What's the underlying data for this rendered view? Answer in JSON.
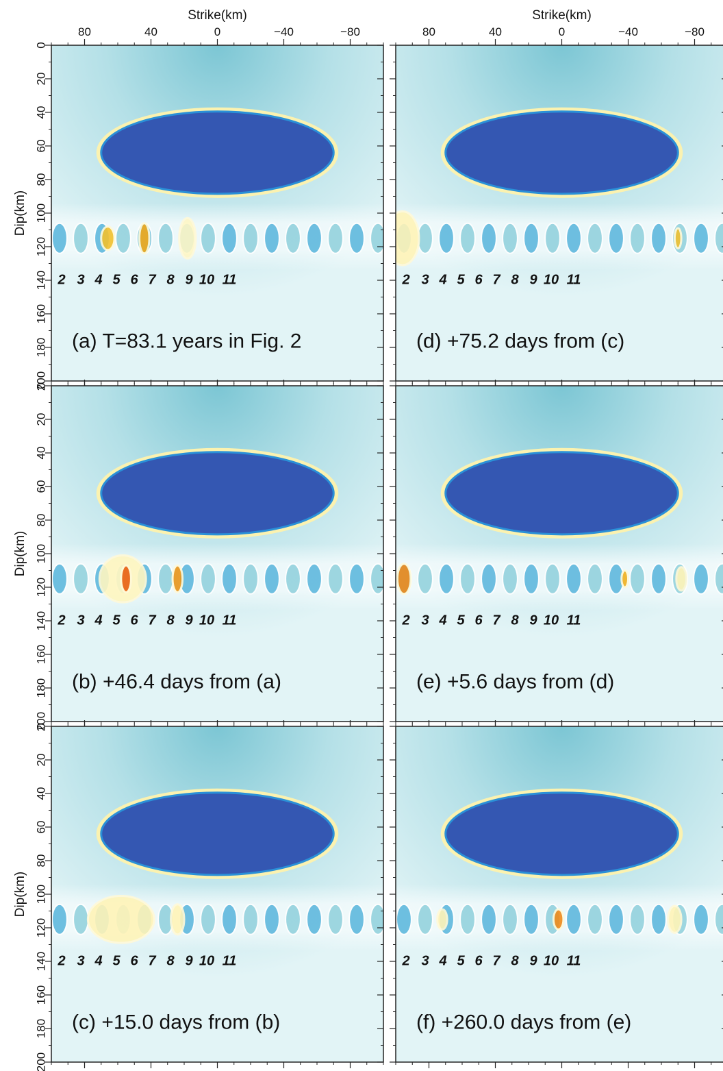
{
  "chart_data": [
    {
      "type": "image",
      "title": "(a) T=83.1 years in Fig. 2",
      "xlabel": "Strike(km)",
      "ylabel": "Dip(km)",
      "xlim": [
        100,
        -100
      ],
      "ylim": [
        0,
        200
      ],
      "xticks": [
        80,
        40,
        0,
        {
          "value": -40,
          "label": "−40"
        },
        {
          "value": -80,
          "label": "−80"
        }
      ],
      "yticks": [
        0,
        20,
        40,
        60,
        80,
        100,
        120,
        140,
        160,
        180,
        200
      ],
      "patches": [
        2,
        3,
        4,
        5,
        6,
        7,
        8,
        9,
        10,
        11
      ]
    },
    {
      "type": "image",
      "title": "(b) +46.4 days from (a)",
      "ylabel": "Dip(km)",
      "xlim": [
        100,
        -100
      ],
      "ylim": [
        0,
        200
      ],
      "xticks": [
        80,
        40,
        0,
        {
          "value": -40,
          "label": "−40"
        },
        {
          "value": -80,
          "label": "−80"
        }
      ],
      "yticks": [
        0,
        20,
        40,
        60,
        80,
        100,
        120,
        140,
        160,
        180,
        200
      ],
      "patches": [
        2,
        3,
        4,
        5,
        6,
        7,
        8,
        9,
        10,
        11
      ]
    },
    {
      "type": "image",
      "title": "(c) +15.0 days from (b)",
      "ylabel": "Dip(km)",
      "xlim": [
        100,
        -100
      ],
      "ylim": [
        0,
        200
      ],
      "xticks": [
        80,
        40,
        0,
        {
          "value": -40,
          "label": "−40"
        },
        {
          "value": -80,
          "label": "−80"
        }
      ],
      "yticks": [
        0,
        20,
        40,
        60,
        80,
        100,
        120,
        140,
        160,
        180,
        200
      ],
      "patches": [
        2,
        3,
        4,
        5,
        6,
        7,
        8,
        9,
        10,
        11
      ]
    },
    {
      "type": "image",
      "title": "(d) +75.2 days from (c)",
      "xlabel": "Strike(km)",
      "xlim": [
        100,
        -100
      ],
      "ylim": [
        0,
        200
      ],
      "xticks": [
        80,
        40,
        0,
        {
          "value": -40,
          "label": "−40"
        },
        {
          "value": -80,
          "label": "−80"
        }
      ],
      "yticks": [
        0,
        20,
        40,
        60,
        80,
        100,
        120,
        140,
        160,
        180,
        200
      ],
      "patches": [
        2,
        3,
        4,
        5,
        6,
        7,
        8,
        9,
        10,
        11
      ]
    },
    {
      "type": "image",
      "title": "(e) +5.6 days from (d)",
      "xlim": [
        100,
        -100
      ],
      "ylim": [
        0,
        200
      ],
      "xticks": [
        80,
        40,
        0,
        {
          "value": -40,
          "label": "−40"
        },
        {
          "value": -80,
          "label": "−80"
        }
      ],
      "yticks": [
        0,
        20,
        40,
        60,
        80,
        100,
        120,
        140,
        160,
        180,
        200
      ],
      "patches": [
        2,
        3,
        4,
        5,
        6,
        7,
        8,
        9,
        10,
        11
      ]
    },
    {
      "type": "image",
      "title": "(f) +260.0 days from (e)",
      "xlim": [
        100,
        -100
      ],
      "ylim": [
        0,
        200
      ],
      "xticks": [
        80,
        40,
        0,
        {
          "value": -40,
          "label": "−40"
        },
        {
          "value": -80,
          "label": "−80"
        }
      ],
      "yticks": [
        0,
        20,
        40,
        60,
        80,
        100,
        120,
        140,
        160,
        180,
        200
      ],
      "patches": [
        2,
        3,
        4,
        5,
        6,
        7,
        8,
        9,
        10,
        11
      ]
    }
  ]
}
